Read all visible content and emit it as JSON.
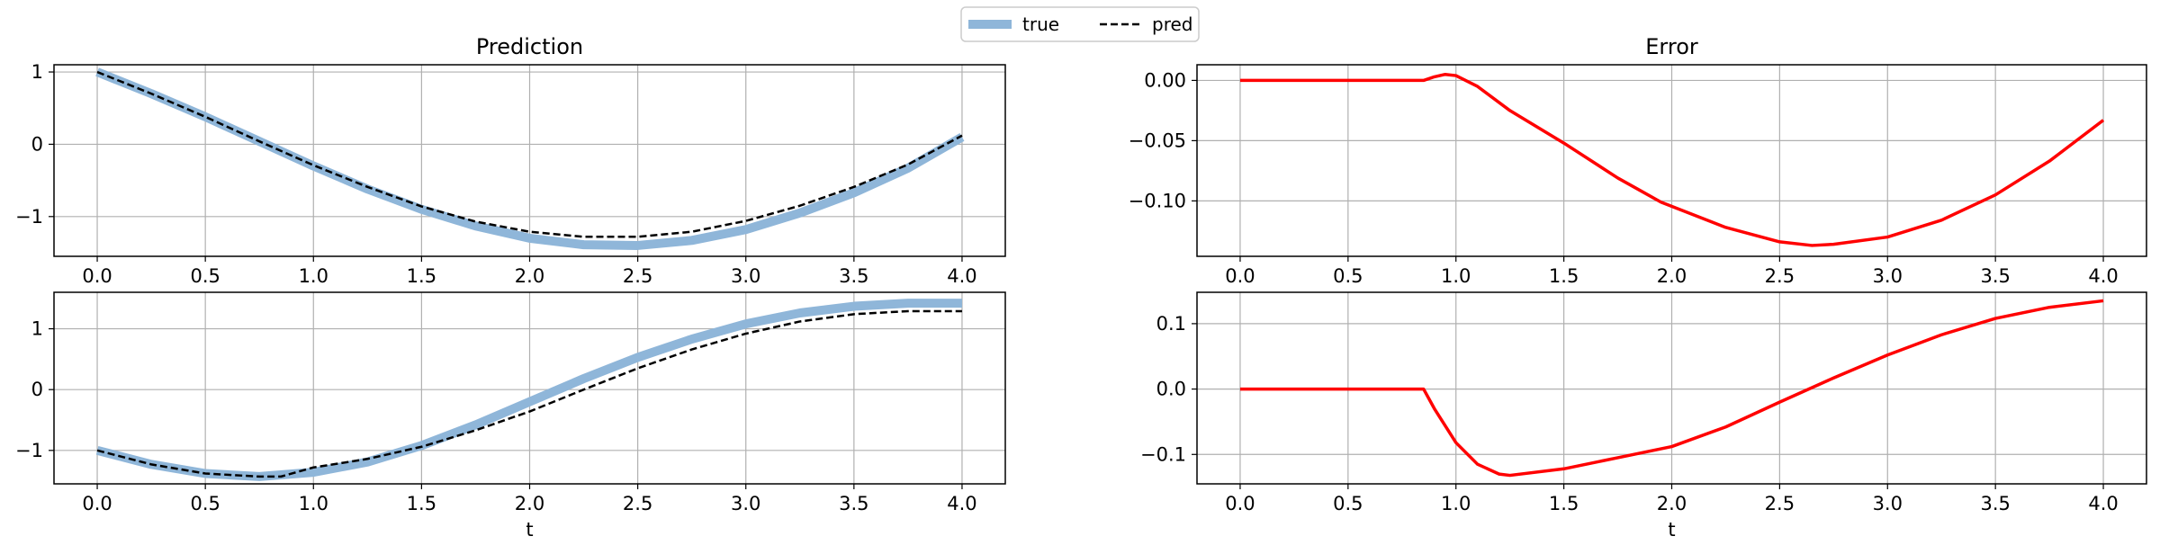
{
  "legend": {
    "entries": [
      {
        "label": "true",
        "color": "#8fb6d9",
        "style": "solid-thick"
      },
      {
        "label": "pred",
        "color": "#000000",
        "style": "dashed"
      }
    ]
  },
  "chart_data": [
    {
      "type": "line",
      "title": "Prediction",
      "xlabel": "",
      "ylabel": "",
      "xlim": [
        -0.2,
        4.2
      ],
      "ylim": [
        -1.55,
        1.1
      ],
      "xticks": [
        0.0,
        0.5,
        1.0,
        1.5,
        2.0,
        2.5,
        3.0,
        3.5,
        4.0
      ],
      "xtick_labels": [
        "0.0",
        "0.5",
        "1.0",
        "1.5",
        "2.0",
        "2.5",
        "3.0",
        "3.5",
        "4.0"
      ],
      "yticks": [
        1,
        0,
        -1
      ],
      "ytick_labels": [
        "1",
        "0",
        "−1"
      ],
      "grid": true,
      "series": [
        {
          "name": "true",
          "color": "#8fb6d9",
          "style": "solid-thick",
          "x": [
            0.0,
            0.25,
            0.5,
            0.75,
            1.0,
            1.25,
            1.5,
            1.75,
            2.0,
            2.25,
            2.5,
            2.75,
            3.0,
            3.25,
            3.5,
            3.75,
            4.0
          ],
          "y": [
            1.0,
            0.7,
            0.38,
            0.04,
            -0.3,
            -0.62,
            -0.9,
            -1.13,
            -1.3,
            -1.39,
            -1.4,
            -1.33,
            -1.18,
            -0.95,
            -0.67,
            -0.33,
            0.1
          ]
        },
        {
          "name": "pred",
          "color": "#000000",
          "style": "dashed",
          "x": [
            0.0,
            0.25,
            0.5,
            0.75,
            1.0,
            1.25,
            1.5,
            1.75,
            2.0,
            2.25,
            2.5,
            2.75,
            3.0,
            3.25,
            3.5,
            3.75,
            4.0
          ],
          "y": [
            1.0,
            0.7,
            0.38,
            0.04,
            -0.29,
            -0.59,
            -0.86,
            -1.07,
            -1.21,
            -1.28,
            -1.28,
            -1.21,
            -1.06,
            -0.85,
            -0.59,
            -0.28,
            0.12
          ]
        }
      ]
    },
    {
      "type": "line",
      "title": "Error",
      "xlabel": "",
      "ylabel": "",
      "xlim": [
        -0.2,
        4.2
      ],
      "ylim": [
        -0.146,
        0.013
      ],
      "xticks": [
        0.0,
        0.5,
        1.0,
        1.5,
        2.0,
        2.5,
        3.0,
        3.5,
        4.0
      ],
      "xtick_labels": [
        "0.0",
        "0.5",
        "1.0",
        "1.5",
        "2.0",
        "2.5",
        "3.0",
        "3.5",
        "4.0"
      ],
      "yticks": [
        0.0,
        -0.05,
        -0.1
      ],
      "ytick_labels": [
        "0.00",
        "−0.05",
        "−0.10"
      ],
      "grid": true,
      "series": [
        {
          "name": "error",
          "color": "#ff0000",
          "style": "solid",
          "x": [
            0.0,
            0.85,
            0.9,
            0.95,
            1.0,
            1.1,
            1.25,
            1.5,
            1.75,
            1.85,
            1.95,
            2.25,
            2.5,
            2.65,
            2.75,
            3.0,
            3.25,
            3.5,
            3.75,
            4.0
          ],
          "y": [
            0.0,
            0.0,
            0.003,
            0.005,
            0.004,
            -0.005,
            -0.025,
            -0.052,
            -0.081,
            -0.091,
            -0.101,
            -0.122,
            -0.134,
            -0.137,
            -0.136,
            -0.13,
            -0.116,
            -0.095,
            -0.067,
            -0.033
          ]
        }
      ]
    },
    {
      "type": "line",
      "title": "",
      "xlabel": "t",
      "ylabel": "",
      "xlim": [
        -0.2,
        4.2
      ],
      "ylim": [
        -1.55,
        1.6
      ],
      "xticks": [
        0.0,
        0.5,
        1.0,
        1.5,
        2.0,
        2.5,
        3.0,
        3.5,
        4.0
      ],
      "xtick_labels": [
        "0.0",
        "0.5",
        "1.0",
        "1.5",
        "2.0",
        "2.5",
        "3.0",
        "3.5",
        "4.0"
      ],
      "yticks": [
        1,
        0,
        -1
      ],
      "ytick_labels": [
        "1",
        "0",
        "−1"
      ],
      "grid": true,
      "series": [
        {
          "name": "true",
          "color": "#8fb6d9",
          "style": "solid-thick",
          "x": [
            0.0,
            0.25,
            0.5,
            0.75,
            1.0,
            1.25,
            1.5,
            1.75,
            2.0,
            2.25,
            2.5,
            2.75,
            3.0,
            3.25,
            3.5,
            3.75,
            4.0
          ],
          "y": [
            -1.0,
            -1.23,
            -1.38,
            -1.43,
            -1.36,
            -1.19,
            -0.92,
            -0.58,
            -0.2,
            0.18,
            0.53,
            0.83,
            1.08,
            1.26,
            1.37,
            1.42,
            1.42
          ]
        },
        {
          "name": "pred",
          "color": "#000000",
          "style": "dashed",
          "x": [
            0.0,
            0.25,
            0.5,
            0.75,
            0.85,
            1.0,
            1.25,
            1.5,
            1.75,
            2.0,
            2.25,
            2.5,
            2.75,
            3.0,
            3.25,
            3.5,
            3.75,
            4.0
          ],
          "y": [
            -1.0,
            -1.23,
            -1.38,
            -1.43,
            -1.43,
            -1.28,
            -1.14,
            -0.94,
            -0.67,
            -0.36,
            0.0,
            0.35,
            0.66,
            0.92,
            1.12,
            1.24,
            1.29,
            1.29
          ]
        }
      ]
    },
    {
      "type": "line",
      "title": "",
      "xlabel": "t",
      "ylabel": "",
      "xlim": [
        -0.2,
        4.2
      ],
      "ylim": [
        -0.145,
        0.148
      ],
      "xticks": [
        0.0,
        0.5,
        1.0,
        1.5,
        2.0,
        2.5,
        3.0,
        3.5,
        4.0
      ],
      "xtick_labels": [
        "0.0",
        "0.5",
        "1.0",
        "1.5",
        "2.0",
        "2.5",
        "3.0",
        "3.5",
        "4.0"
      ],
      "yticks": [
        0.1,
        0.0,
        -0.1
      ],
      "ytick_labels": [
        "0.1",
        "0.0",
        "−0.1"
      ],
      "grid": true,
      "series": [
        {
          "name": "error",
          "color": "#ff0000",
          "style": "solid",
          "x": [
            0.0,
            0.85,
            0.9,
            1.0,
            1.1,
            1.2,
            1.25,
            1.5,
            1.75,
            2.0,
            2.25,
            2.5,
            2.75,
            3.0,
            3.25,
            3.5,
            3.75,
            4.0
          ],
          "y": [
            0.0,
            0.0,
            -0.03,
            -0.082,
            -0.115,
            -0.13,
            -0.132,
            -0.122,
            -0.105,
            -0.088,
            -0.058,
            -0.02,
            0.017,
            0.052,
            0.083,
            0.108,
            0.125,
            0.135
          ]
        }
      ]
    }
  ]
}
